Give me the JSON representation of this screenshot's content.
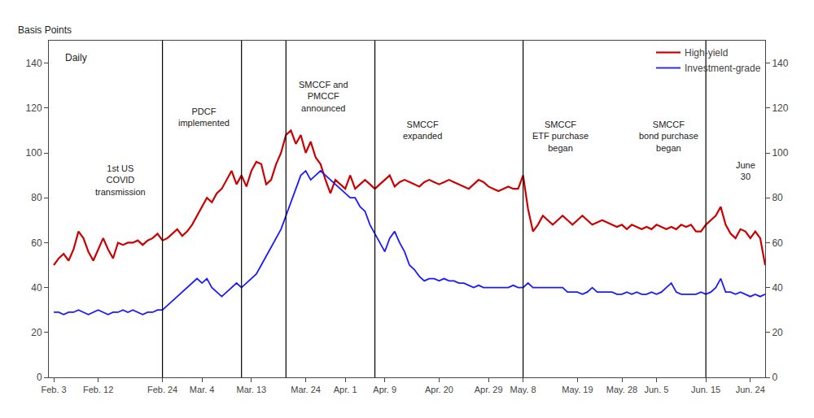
{
  "chart_data": {
    "type": "line",
    "ylabel": "Basis Points",
    "subtitle": "Daily",
    "categories": [
      "Feb. 3",
      null,
      null,
      null,
      null,
      null,
      null,
      null,
      null,
      "Feb. 12",
      null,
      null,
      null,
      null,
      null,
      null,
      null,
      null,
      null,
      null,
      null,
      null,
      "Feb. 24",
      null,
      null,
      null,
      null,
      null,
      null,
      null,
      "Mar. 4",
      null,
      null,
      null,
      null,
      null,
      null,
      null,
      null,
      null,
      "Mar. 13",
      null,
      null,
      null,
      null,
      null,
      null,
      null,
      null,
      null,
      null,
      "Mar. 24",
      null,
      null,
      null,
      null,
      null,
      null,
      null,
      "Apr. 1",
      null,
      null,
      null,
      null,
      null,
      null,
      null,
      "Apr. 9",
      null,
      null,
      null,
      null,
      null,
      null,
      null,
      null,
      null,
      null,
      "Apr. 20",
      null,
      null,
      null,
      null,
      null,
      null,
      null,
      null,
      null,
      "Apr. 29",
      null,
      null,
      null,
      null,
      null,
      null,
      "May. 8",
      null,
      null,
      null,
      null,
      null,
      null,
      null,
      null,
      null,
      null,
      "May. 19",
      null,
      null,
      null,
      null,
      null,
      null,
      null,
      null,
      "May. 28",
      null,
      null,
      null,
      null,
      null,
      null,
      "Jun. 5",
      null,
      null,
      null,
      null,
      null,
      null,
      null,
      null,
      null,
      "Jun. 15",
      null,
      null,
      null,
      null,
      null,
      null,
      null,
      null,
      "Jun. 24",
      null,
      null,
      null
    ],
    "series": [
      {
        "name": "High-yield",
        "color": "#cc0000",
        "values": [
          50,
          53,
          55,
          52,
          57,
          65,
          62,
          56,
          52,
          57,
          62,
          57,
          53,
          60,
          59,
          60,
          60,
          61,
          59,
          61,
          62,
          64,
          61,
          62,
          64,
          66,
          63,
          65,
          68,
          72,
          76,
          80,
          78,
          82,
          84,
          88,
          92,
          86,
          90,
          85,
          92,
          96,
          95,
          86,
          88,
          95,
          100,
          108,
          110,
          104,
          108,
          100,
          105,
          98,
          95,
          88,
          82,
          88,
          86,
          84,
          90,
          84,
          86,
          88,
          86,
          84,
          86,
          88,
          90,
          85,
          87,
          88,
          87,
          86,
          85,
          87,
          88,
          87,
          86,
          87,
          88,
          87,
          86,
          85,
          84,
          86,
          88,
          87,
          85,
          84,
          83,
          84,
          85,
          84,
          84,
          90,
          75,
          65,
          68,
          72,
          70,
          68,
          70,
          72,
          70,
          68,
          70,
          72,
          70,
          68,
          69,
          70,
          69,
          68,
          67,
          68,
          66,
          68,
          67,
          66,
          67,
          66,
          68,
          67,
          66,
          67,
          66,
          68,
          67,
          68,
          65,
          65,
          68,
          70,
          72,
          76,
          68,
          64,
          62,
          66,
          65,
          62,
          65,
          62,
          50
        ]
      },
      {
        "name": "Investment-grade",
        "color": "#1a1aff",
        "values": [
          29,
          29,
          28,
          29,
          29,
          30,
          29,
          28,
          29,
          30,
          29,
          28,
          29,
          29,
          30,
          29,
          30,
          29,
          28,
          29,
          29,
          30,
          30,
          32,
          34,
          36,
          38,
          40,
          42,
          44,
          42,
          44,
          40,
          38,
          36,
          38,
          40,
          42,
          40,
          42,
          44,
          46,
          50,
          54,
          58,
          62,
          66,
          72,
          78,
          84,
          90,
          92,
          88,
          90,
          92,
          90,
          88,
          86,
          84,
          82,
          80,
          80,
          76,
          74,
          68,
          64,
          60,
          56,
          62,
          65,
          60,
          56,
          50,
          48,
          45,
          43,
          44,
          44,
          43,
          44,
          43,
          43,
          42,
          42,
          41,
          40,
          41,
          40,
          40,
          40,
          40,
          40,
          40,
          41,
          40,
          40,
          42,
          40,
          40,
          40,
          40,
          40,
          40,
          40,
          38,
          38,
          38,
          37,
          38,
          40,
          38,
          38,
          38,
          38,
          37,
          37,
          38,
          37,
          38,
          37,
          37,
          38,
          37,
          38,
          40,
          42,
          38,
          37,
          37,
          37,
          37,
          38,
          37,
          38,
          40,
          44,
          38,
          38,
          37,
          38,
          37,
          36,
          37,
          36,
          37
        ]
      }
    ],
    "ylim": [
      0,
      150
    ],
    "yticks": [
      0,
      20,
      40,
      60,
      80,
      100,
      120,
      140
    ],
    "y2lim": [
      0,
      150
    ],
    "y2ticks": [
      0,
      20,
      40,
      60,
      80,
      100,
      120,
      140
    ],
    "grid": false,
    "legend": "upper right",
    "annotations": [
      {
        "x": 22,
        "text": "1st US\nCOVID\ntransmission",
        "vline": true
      },
      {
        "x": 38,
        "text": "PDCF\nimplemented",
        "vline": true
      },
      {
        "x": 47,
        "text": "SMCCF and\nPMCCF\nannounced",
        "vline": true
      },
      {
        "x": 65,
        "text": "SMCCF\nexpanded",
        "vline": true
      },
      {
        "x": 95,
        "text": "SMCCF\nETF purchase\nbegan",
        "vline": true
      },
      {
        "x": 132,
        "text": "SMCCF\nbond purchase\nbegan",
        "vline": true
      },
      {
        "x": 140,
        "text": "June\n30"
      }
    ]
  }
}
